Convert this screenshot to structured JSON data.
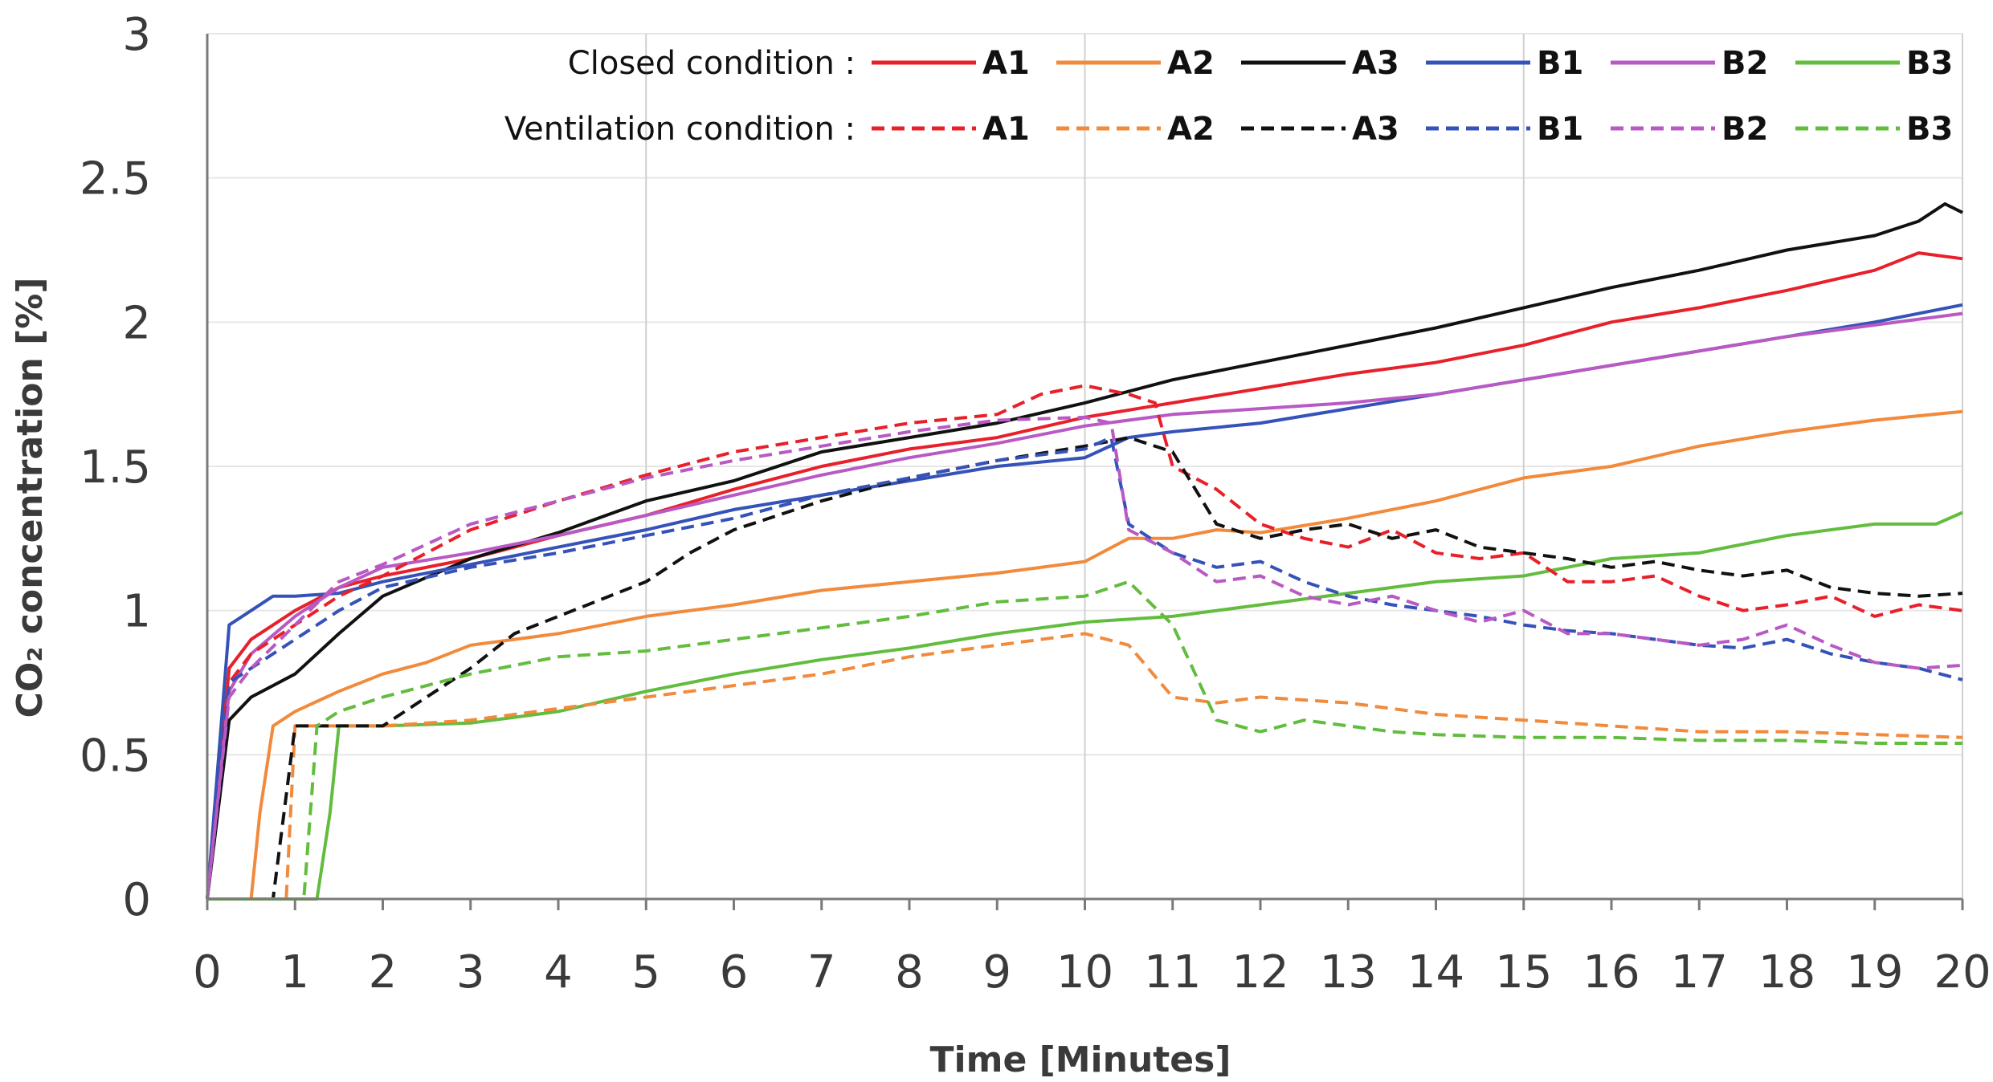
{
  "chart_data": {
    "type": "line",
    "xlabel": "Time [Minutes]",
    "ylabel": "CO₂ concentration [%]",
    "xlim": [
      0,
      20
    ],
    "ylim": [
      0,
      3
    ],
    "x_ticks": [
      0,
      1,
      2,
      3,
      4,
      5,
      6,
      7,
      8,
      9,
      10,
      11,
      12,
      13,
      14,
      15,
      16,
      17,
      18,
      19,
      20
    ],
    "y_ticks": [
      0,
      0.5,
      1,
      1.5,
      2,
      2.5,
      3
    ],
    "grid": "vertical at 5-minute intervals, light horizontal",
    "legend_placement": "top-right, inside plot",
    "legend_groups": [
      {
        "label": "Closed condition  :",
        "style": "solid"
      },
      {
        "label": "Ventilation  condition  :",
        "style": "dashed"
      }
    ],
    "series": [
      {
        "name": "A1",
        "condition": "closed",
        "color": "#e8202a",
        "dashed": false,
        "x": [
          0,
          0.25,
          0.5,
          1,
          1.5,
          2,
          3,
          4,
          5,
          6,
          7,
          8,
          9,
          10,
          11,
          12,
          13,
          14,
          15,
          16,
          17,
          18,
          19,
          19.5,
          20
        ],
        "y": [
          0,
          0.8,
          0.9,
          1.0,
          1.08,
          1.12,
          1.18,
          1.26,
          1.33,
          1.42,
          1.5,
          1.56,
          1.6,
          1.67,
          1.72,
          1.77,
          1.82,
          1.86,
          1.92,
          2.0,
          2.05,
          2.11,
          2.18,
          2.24,
          2.22
        ]
      },
      {
        "name": "A2",
        "condition": "closed",
        "color": "#f28a3c",
        "dashed": false,
        "x": [
          0,
          0.5,
          0.6,
          0.75,
          1,
          1.5,
          2,
          2.5,
          3,
          4,
          5,
          6,
          7,
          8,
          9,
          10,
          10.5,
          11,
          11.5,
          12,
          13,
          14,
          15,
          16,
          17,
          18,
          19,
          20
        ],
        "y": [
          0,
          0,
          0.3,
          0.6,
          0.65,
          0.72,
          0.78,
          0.82,
          0.88,
          0.92,
          0.98,
          1.02,
          1.07,
          1.1,
          1.13,
          1.17,
          1.25,
          1.25,
          1.28,
          1.27,
          1.32,
          1.38,
          1.46,
          1.5,
          1.57,
          1.62,
          1.66,
          1.69
        ]
      },
      {
        "name": "A3",
        "condition": "closed",
        "color": "#111111",
        "dashed": false,
        "x": [
          0,
          0.25,
          0.5,
          1,
          1.5,
          2,
          3,
          4,
          5,
          6,
          7,
          8,
          9,
          10,
          11,
          12,
          13,
          14,
          15,
          16,
          17,
          18,
          19,
          19.5,
          19.8,
          20
        ],
        "y": [
          0,
          0.62,
          0.7,
          0.78,
          0.92,
          1.05,
          1.18,
          1.27,
          1.38,
          1.45,
          1.55,
          1.6,
          1.65,
          1.72,
          1.8,
          1.86,
          1.92,
          1.98,
          2.05,
          2.12,
          2.18,
          2.25,
          2.3,
          2.35,
          2.41,
          2.38
        ]
      },
      {
        "name": "B1",
        "condition": "closed",
        "color": "#3552b8",
        "dashed": false,
        "x": [
          0,
          0.25,
          0.5,
          0.75,
          1,
          1.5,
          2,
          3,
          4,
          5,
          6,
          7,
          8,
          9,
          10,
          10.5,
          11,
          12,
          13,
          14,
          15,
          16,
          17,
          18,
          19,
          20
        ],
        "y": [
          0,
          0.95,
          1.0,
          1.05,
          1.05,
          1.06,
          1.1,
          1.16,
          1.22,
          1.28,
          1.35,
          1.4,
          1.45,
          1.5,
          1.53,
          1.6,
          1.62,
          1.65,
          1.7,
          1.75,
          1.8,
          1.85,
          1.9,
          1.95,
          2.0,
          2.06
        ]
      },
      {
        "name": "B2",
        "condition": "closed",
        "color": "#b859c4",
        "dashed": false,
        "x": [
          0,
          0.25,
          0.5,
          1,
          1.5,
          2,
          3,
          4,
          5,
          6,
          7,
          8,
          9,
          10,
          11,
          12,
          13,
          14,
          15,
          16,
          17,
          18,
          19,
          20
        ],
        "y": [
          0,
          0.72,
          0.85,
          0.98,
          1.08,
          1.15,
          1.2,
          1.26,
          1.33,
          1.4,
          1.47,
          1.53,
          1.58,
          1.64,
          1.68,
          1.7,
          1.72,
          1.75,
          1.8,
          1.85,
          1.9,
          1.95,
          1.99,
          2.03
        ]
      },
      {
        "name": "B3",
        "condition": "closed",
        "color": "#62bd3e",
        "dashed": false,
        "x": [
          0,
          1.25,
          1.4,
          1.5,
          2,
          3,
          4,
          5,
          6,
          7,
          8,
          9,
          10,
          11,
          12,
          13,
          14,
          15,
          16,
          17,
          18,
          19,
          19.7,
          20
        ],
        "y": [
          0,
          0,
          0.3,
          0.6,
          0.6,
          0.61,
          0.65,
          0.72,
          0.78,
          0.83,
          0.87,
          0.92,
          0.96,
          0.98,
          1.02,
          1.06,
          1.1,
          1.12,
          1.18,
          1.2,
          1.26,
          1.3,
          1.3,
          1.34
        ]
      },
      {
        "name": "A1",
        "condition": "ventilation",
        "color": "#e8202a",
        "dashed": true,
        "x": [
          0,
          0.25,
          0.5,
          1,
          1.5,
          2,
          3,
          4,
          5,
          6,
          7,
          8,
          9,
          9.5,
          10,
          10.5,
          10.8,
          11,
          11.5,
          12,
          12.5,
          13,
          13.5,
          14,
          14.5,
          15,
          15.5,
          16,
          16.5,
          17,
          17.5,
          18,
          18.5,
          19,
          19.5,
          20
        ],
        "y": [
          0,
          0.75,
          0.85,
          0.95,
          1.05,
          1.12,
          1.28,
          1.38,
          1.47,
          1.55,
          1.6,
          1.65,
          1.68,
          1.75,
          1.78,
          1.75,
          1.72,
          1.5,
          1.42,
          1.3,
          1.25,
          1.22,
          1.28,
          1.2,
          1.18,
          1.2,
          1.1,
          1.1,
          1.12,
          1.05,
          1.0,
          1.02,
          1.05,
          0.98,
          1.02,
          1.0
        ]
      },
      {
        "name": "A2",
        "condition": "ventilation",
        "color": "#f28a3c",
        "dashed": true,
        "x": [
          0,
          0.9,
          1.0,
          1.5,
          2,
          3,
          4,
          5,
          6,
          7,
          8,
          9,
          10,
          10.5,
          11,
          11.5,
          12,
          13,
          14,
          15,
          16,
          17,
          18,
          19,
          20
        ],
        "y": [
          0,
          0,
          0.6,
          0.6,
          0.6,
          0.62,
          0.66,
          0.7,
          0.74,
          0.78,
          0.84,
          0.88,
          0.92,
          0.88,
          0.7,
          0.68,
          0.7,
          0.68,
          0.64,
          0.62,
          0.6,
          0.58,
          0.58,
          0.57,
          0.56
        ]
      },
      {
        "name": "A3",
        "condition": "ventilation",
        "color": "#111111",
        "dashed": true,
        "x": [
          0,
          0.75,
          1.0,
          1.5,
          2,
          3,
          3.5,
          4,
          5,
          5.5,
          6,
          7,
          8,
          9,
          10,
          10.5,
          11,
          11.5,
          12,
          12.5,
          13,
          13.5,
          14,
          14.5,
          15,
          15.5,
          16,
          16.5,
          17,
          17.5,
          18,
          18.5,
          19,
          19.5,
          20
        ],
        "y": [
          0,
          0,
          0.6,
          0.6,
          0.6,
          0.8,
          0.92,
          0.98,
          1.1,
          1.2,
          1.28,
          1.38,
          1.46,
          1.52,
          1.57,
          1.6,
          1.55,
          1.3,
          1.25,
          1.28,
          1.3,
          1.25,
          1.28,
          1.22,
          1.2,
          1.18,
          1.15,
          1.17,
          1.14,
          1.12,
          1.14,
          1.08,
          1.06,
          1.05,
          1.06
        ]
      },
      {
        "name": "B1",
        "condition": "ventilation",
        "color": "#3552b8",
        "dashed": true,
        "x": [
          0,
          0.25,
          0.5,
          1,
          1.5,
          2,
          3,
          4,
          5,
          6,
          7,
          8,
          9,
          10,
          10.3,
          10.5,
          11,
          11.5,
          12,
          12.5,
          13,
          13.5,
          14,
          14.5,
          15,
          15.5,
          16,
          16.5,
          17,
          17.5,
          18,
          18.5,
          19,
          19.5,
          20
        ],
        "y": [
          0,
          0.75,
          0.8,
          0.9,
          1.0,
          1.08,
          1.15,
          1.2,
          1.26,
          1.32,
          1.4,
          1.46,
          1.52,
          1.56,
          1.6,
          1.3,
          1.2,
          1.15,
          1.17,
          1.1,
          1.05,
          1.02,
          1.0,
          0.98,
          0.95,
          0.93,
          0.92,
          0.9,
          0.88,
          0.87,
          0.9,
          0.85,
          0.82,
          0.8,
          0.76
        ]
      },
      {
        "name": "B2",
        "condition": "ventilation",
        "color": "#b859c4",
        "dashed": true,
        "x": [
          0,
          0.25,
          0.5,
          1,
          1.5,
          2,
          3,
          4,
          5,
          6,
          7,
          8,
          9,
          10,
          10.3,
          10.5,
          11,
          11.5,
          12,
          12.5,
          13,
          13.5,
          14,
          14.5,
          15,
          15.5,
          16,
          16.5,
          17,
          17.5,
          18,
          18.5,
          19,
          19.5,
          20
        ],
        "y": [
          0,
          0.7,
          0.8,
          0.95,
          1.1,
          1.16,
          1.3,
          1.38,
          1.46,
          1.52,
          1.57,
          1.62,
          1.66,
          1.67,
          1.65,
          1.28,
          1.2,
          1.1,
          1.12,
          1.05,
          1.02,
          1.05,
          1.0,
          0.96,
          1.0,
          0.92,
          0.92,
          0.9,
          0.88,
          0.9,
          0.95,
          0.88,
          0.82,
          0.8,
          0.81
        ]
      },
      {
        "name": "B3",
        "condition": "ventilation",
        "color": "#62bd3e",
        "dashed": true,
        "x": [
          0,
          1.1,
          1.25,
          1.5,
          2,
          3,
          4,
          5,
          6,
          7,
          8,
          9,
          10,
          10.5,
          11,
          11.5,
          12,
          12.5,
          13,
          13.5,
          14,
          15,
          16,
          17,
          18,
          19,
          20
        ],
        "y": [
          0,
          0,
          0.6,
          0.65,
          0.7,
          0.78,
          0.84,
          0.86,
          0.9,
          0.94,
          0.98,
          1.03,
          1.05,
          1.1,
          0.95,
          0.62,
          0.58,
          0.62,
          0.6,
          0.58,
          0.57,
          0.56,
          0.56,
          0.55,
          0.55,
          0.54,
          0.54
        ]
      }
    ]
  }
}
